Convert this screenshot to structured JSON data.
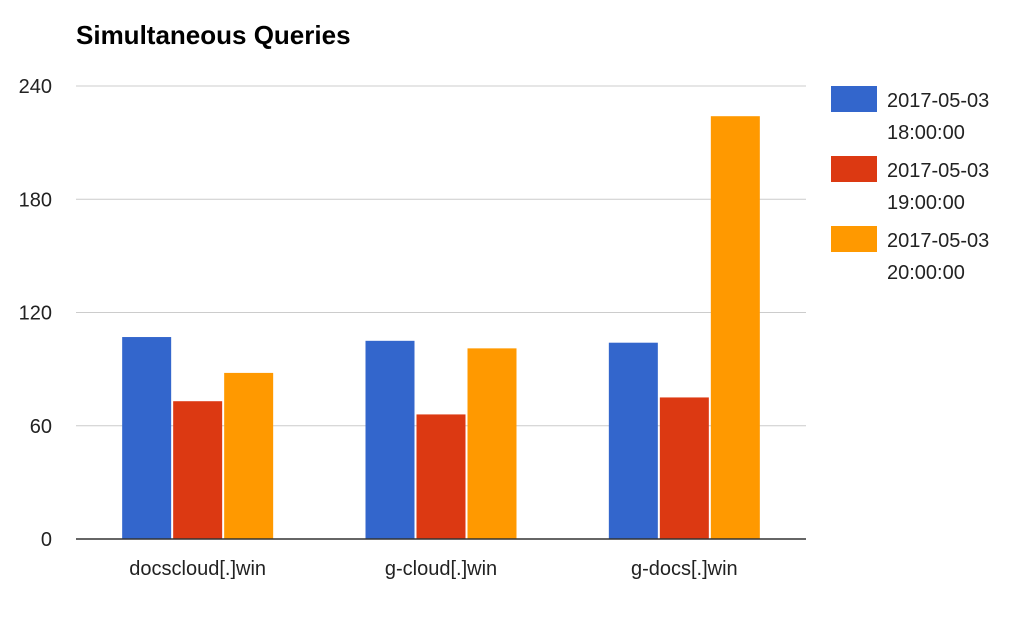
{
  "chart_data": {
    "type": "bar",
    "title": "Simultaneous Queries",
    "categories": [
      "docscloud[.]win",
      "g-cloud[.]win",
      "g-docs[.]win"
    ],
    "series": [
      {
        "name": "2017-05-03 18:00:00",
        "legend_lines": [
          "2017-05-03",
          "18:00:00"
        ],
        "color": "#3366cc",
        "values": [
          107,
          105,
          104
        ]
      },
      {
        "name": "2017-05-03 19:00:00",
        "legend_lines": [
          "2017-05-03",
          "19:00:00"
        ],
        "color": "#dc3912",
        "values": [
          73,
          66,
          75
        ]
      },
      {
        "name": "2017-05-03 20:00:00",
        "legend_lines": [
          "2017-05-03",
          "20:00:00"
        ],
        "color": "#ff9900",
        "values": [
          88,
          101,
          224
        ]
      }
    ],
    "ylim": [
      0,
      240
    ],
    "yticks": [
      0,
      60,
      120,
      180,
      240
    ],
    "grid": true,
    "legend_position": "right"
  }
}
